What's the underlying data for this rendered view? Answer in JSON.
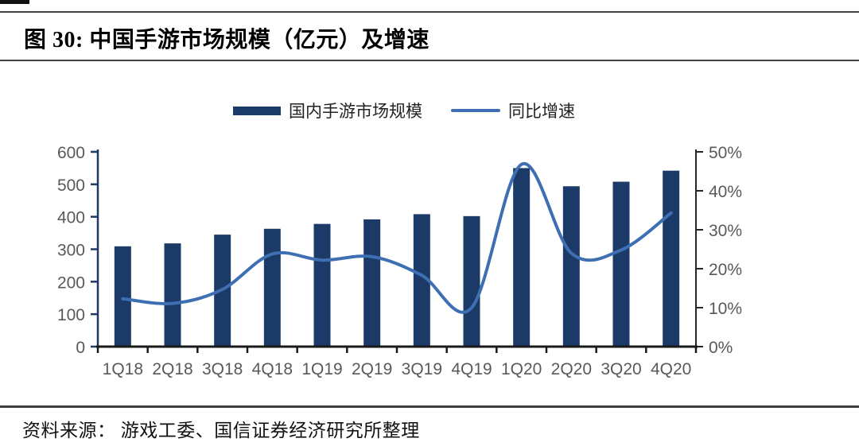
{
  "figure": {
    "title": "图 30:  中国手游市场规模（亿元）及增速",
    "source_note": "资料来源： 游戏工委、国信证券经济研究所整理"
  },
  "chart_data": {
    "type": "bar",
    "subtype": "bar+line-combo",
    "categories": [
      "1Q18",
      "2Q18",
      "3Q18",
      "4Q18",
      "1Q19",
      "2Q19",
      "3Q19",
      "4Q19",
      "1Q20",
      "2Q20",
      "3Q20",
      "4Q20"
    ],
    "series": [
      {
        "name": "国内手游市场规模",
        "type": "bar",
        "axis": "left",
        "unit": "亿元",
        "values": [
          309,
          318,
          345,
          363,
          378,
          392,
          408,
          402,
          550,
          494,
          508,
          542
        ]
      },
      {
        "name": "同比增速",
        "type": "line",
        "axis": "right",
        "unit": "%",
        "values": [
          12.3,
          11.1,
          14.7,
          23.8,
          22.2,
          23.1,
          18.3,
          10.0,
          46.8,
          24.0,
          24.8,
          34.3
        ]
      }
    ],
    "left_axis": {
      "min": 0,
      "max": 600,
      "tick_labels": [
        "600",
        "500",
        "400",
        "300",
        "200",
        "100",
        "0"
      ]
    },
    "right_axis": {
      "min": 0,
      "max": 50,
      "tick_labels": [
        "50%",
        "40%",
        "30%",
        "20%",
        "10%",
        "0%"
      ]
    },
    "legend_position": "top-center",
    "grid": false,
    "colors": {
      "bar": "#1B3A67",
      "line": "#3E6FB2",
      "axis_label": "#595959",
      "left_axis_line": "#1F3864",
      "bottom_axis_line": "#1a1a1a",
      "right_axis_line": "#262626"
    }
  }
}
